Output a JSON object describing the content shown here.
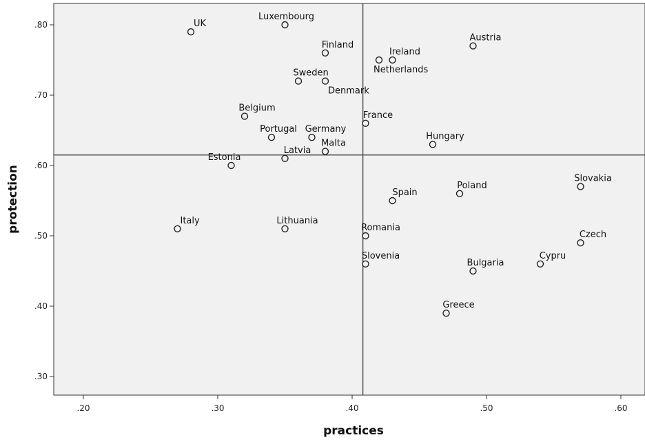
{
  "chart_data": {
    "type": "scatter",
    "title": "",
    "xlabel": "practices",
    "ylabel": "protection",
    "xlim": [
      0.18,
      0.61
    ],
    "ylim": [
      0.27,
      0.83
    ],
    "x_ticks": [
      ".20",
      ".30",
      ".40",
      ".50",
      ".60"
    ],
    "x_tick_values": [
      0.2,
      0.3,
      0.4,
      0.5,
      0.6
    ],
    "y_ticks": [
      ".30",
      ".40",
      ".50",
      ".60",
      ".70",
      ".80"
    ],
    "y_tick_values": [
      0.3,
      0.4,
      0.5,
      0.6,
      0.7,
      0.8
    ],
    "reference_lines": {
      "x": 0.408,
      "y": 0.615
    },
    "grid": false,
    "colors": {
      "plot_background": "#f1f1f1",
      "frame": "#333333",
      "marker_stroke": "#222222"
    },
    "points": [
      {
        "label": "UK",
        "x": 0.28,
        "y": 0.79
      },
      {
        "label": "Luxembourg",
        "x": 0.35,
        "y": 0.8
      },
      {
        "label": "Finland",
        "x": 0.38,
        "y": 0.76
      },
      {
        "label": "Ireland",
        "x": 0.43,
        "y": 0.75
      },
      {
        "label": "Netherlands",
        "x": 0.42,
        "y": 0.75
      },
      {
        "label": "Austria",
        "x": 0.49,
        "y": 0.77
      },
      {
        "label": "Sweden",
        "x": 0.36,
        "y": 0.72
      },
      {
        "label": "Denmark",
        "x": 0.38,
        "y": 0.72
      },
      {
        "label": "Belgium",
        "x": 0.32,
        "y": 0.67
      },
      {
        "label": "France",
        "x": 0.41,
        "y": 0.66
      },
      {
        "label": "Portugal",
        "x": 0.34,
        "y": 0.64
      },
      {
        "label": "Germany",
        "x": 0.37,
        "y": 0.64
      },
      {
        "label": "Malta",
        "x": 0.38,
        "y": 0.62
      },
      {
        "label": "Latvia",
        "x": 0.35,
        "y": 0.61
      },
      {
        "label": "Estonia",
        "x": 0.31,
        "y": 0.6
      },
      {
        "label": "Hungary",
        "x": 0.46,
        "y": 0.63
      },
      {
        "label": "Spain",
        "x": 0.43,
        "y": 0.55
      },
      {
        "label": "Poland",
        "x": 0.48,
        "y": 0.56
      },
      {
        "label": "Slovakia",
        "x": 0.57,
        "y": 0.57
      },
      {
        "label": "Italy",
        "x": 0.27,
        "y": 0.51
      },
      {
        "label": "Lithuania",
        "x": 0.35,
        "y": 0.51
      },
      {
        "label": "Romania",
        "x": 0.41,
        "y": 0.5
      },
      {
        "label": "Czech",
        "x": 0.57,
        "y": 0.49
      },
      {
        "label": "Slovenia",
        "x": 0.41,
        "y": 0.46
      },
      {
        "label": "Bulgaria",
        "x": 0.49,
        "y": 0.45
      },
      {
        "label": "Cypru",
        "x": 0.54,
        "y": 0.46
      },
      {
        "label": "Greece",
        "x": 0.47,
        "y": 0.39
      }
    ]
  }
}
